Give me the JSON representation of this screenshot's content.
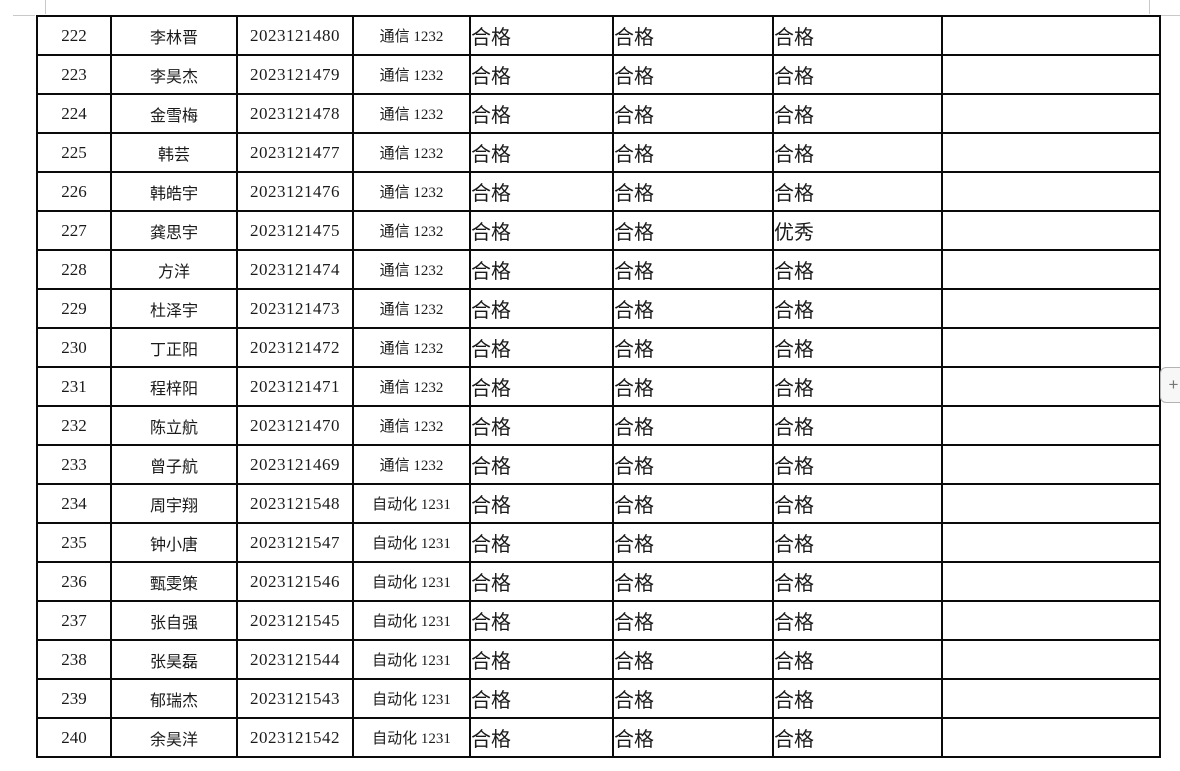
{
  "colors": {
    "table_border": "#0a0a0a",
    "text": "#1a1a1a",
    "crop_mark": "#c9c9c9",
    "add_button_bg": "#f7f7f7",
    "add_button_border": "#b3b3b3"
  },
  "add_button": {
    "label": "+"
  },
  "table": {
    "rows": [
      {
        "no": "222",
        "name": "李林晋",
        "student_id": "2023121480",
        "class": "通信 1232",
        "eval1": "合格",
        "eval2": "合格",
        "eval3": "合格",
        "note": ""
      },
      {
        "no": "223",
        "name": "李昊杰",
        "student_id": "2023121479",
        "class": "通信 1232",
        "eval1": "合格",
        "eval2": "合格",
        "eval3": "合格",
        "note": ""
      },
      {
        "no": "224",
        "name": "金雪梅",
        "student_id": "2023121478",
        "class": "通信 1232",
        "eval1": "合格",
        "eval2": "合格",
        "eval3": "合格",
        "note": ""
      },
      {
        "no": "225",
        "name": "韩芸",
        "student_id": "2023121477",
        "class": "通信 1232",
        "eval1": "合格",
        "eval2": "合格",
        "eval3": "合格",
        "note": ""
      },
      {
        "no": "226",
        "name": "韩皓宇",
        "student_id": "2023121476",
        "class": "通信 1232",
        "eval1": "合格",
        "eval2": "合格",
        "eval3": "合格",
        "note": ""
      },
      {
        "no": "227",
        "name": "龚思宇",
        "student_id": "2023121475",
        "class": "通信 1232",
        "eval1": "合格",
        "eval2": "合格",
        "eval3": "优秀",
        "note": ""
      },
      {
        "no": "228",
        "name": "方洋",
        "student_id": "2023121474",
        "class": "通信 1232",
        "eval1": "合格",
        "eval2": "合格",
        "eval3": "合格",
        "note": ""
      },
      {
        "no": "229",
        "name": "杜泽宇",
        "student_id": "2023121473",
        "class": "通信 1232",
        "eval1": "合格",
        "eval2": "合格",
        "eval3": "合格",
        "note": ""
      },
      {
        "no": "230",
        "name": "丁正阳",
        "student_id": "2023121472",
        "class": "通信 1232",
        "eval1": "合格",
        "eval2": "合格",
        "eval3": "合格",
        "note": ""
      },
      {
        "no": "231",
        "name": "程梓阳",
        "student_id": "2023121471",
        "class": "通信 1232",
        "eval1": "合格",
        "eval2": "合格",
        "eval3": "合格",
        "note": ""
      },
      {
        "no": "232",
        "name": "陈立航",
        "student_id": "2023121470",
        "class": "通信 1232",
        "eval1": "合格",
        "eval2": "合格",
        "eval3": "合格",
        "note": ""
      },
      {
        "no": "233",
        "name": "曾子航",
        "student_id": "2023121469",
        "class": "通信 1232",
        "eval1": "合格",
        "eval2": "合格",
        "eval3": "合格",
        "note": ""
      },
      {
        "no": "234",
        "name": "周宇翔",
        "student_id": "2023121548",
        "class": "自动化 1231",
        "eval1": "合格",
        "eval2": "合格",
        "eval3": "合格",
        "note": ""
      },
      {
        "no": "235",
        "name": "钟小唐",
        "student_id": "2023121547",
        "class": "自动化 1231",
        "eval1": "合格",
        "eval2": "合格",
        "eval3": "合格",
        "note": ""
      },
      {
        "no": "236",
        "name": "甄雯策",
        "student_id": "2023121546",
        "class": "自动化 1231",
        "eval1": "合格",
        "eval2": "合格",
        "eval3": "合格",
        "note": ""
      },
      {
        "no": "237",
        "name": "张自强",
        "student_id": "2023121545",
        "class": "自动化 1231",
        "eval1": "合格",
        "eval2": "合格",
        "eval3": "合格",
        "note": ""
      },
      {
        "no": "238",
        "name": "张昊磊",
        "student_id": "2023121544",
        "class": "自动化 1231",
        "eval1": "合格",
        "eval2": "合格",
        "eval3": "合格",
        "note": ""
      },
      {
        "no": "239",
        "name": "郁瑞杰",
        "student_id": "2023121543",
        "class": "自动化 1231",
        "eval1": "合格",
        "eval2": "合格",
        "eval3": "合格",
        "note": ""
      },
      {
        "no": "240",
        "name": "余昊洋",
        "student_id": "2023121542",
        "class": "自动化 1231",
        "eval1": "合格",
        "eval2": "合格",
        "eval3": "合格",
        "note": ""
      }
    ]
  }
}
